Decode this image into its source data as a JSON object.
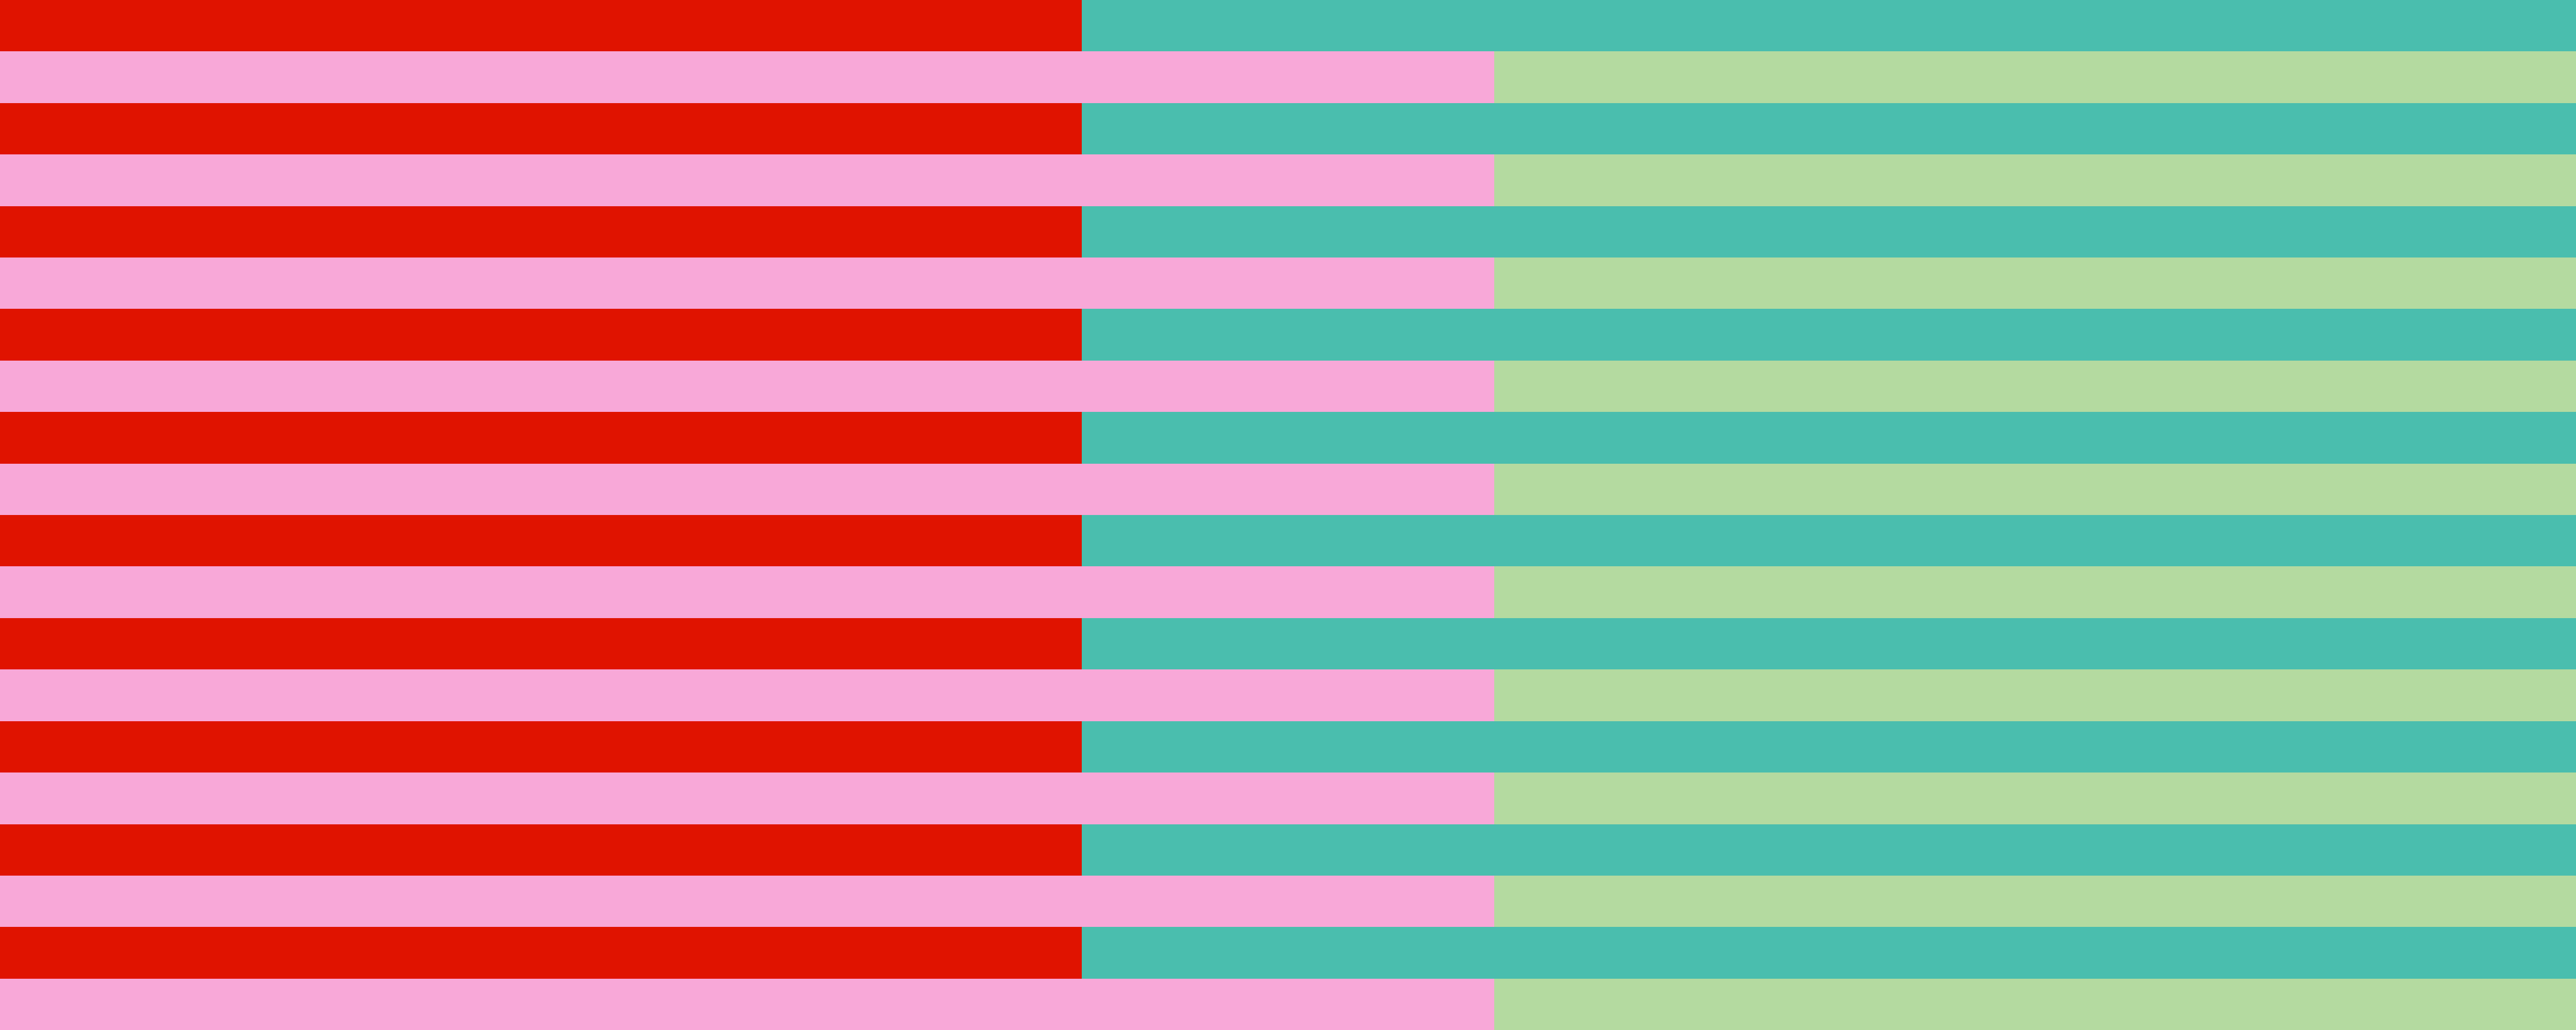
{
  "pattern": {
    "stripe_count": 20,
    "stripe_types": [
      {
        "left_color": "#e01300",
        "right_color": "#4abeae"
      },
      {
        "left_color": "#f8a8d8",
        "right_color": "#b4daa0"
      }
    ]
  }
}
